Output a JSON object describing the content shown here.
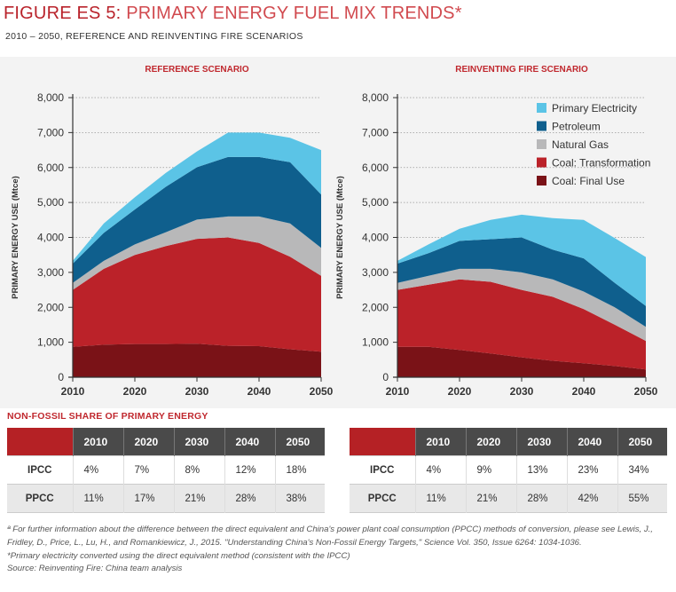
{
  "figure": {
    "title_prefix": "FIGURE ES 5:",
    "title_rest": " PRIMARY ENERGY FUEL MIX TRENDS*",
    "subtitle": "2010 – 2050, REFERENCE AND REINVENTING FIRE SCENARIOS"
  },
  "colors": {
    "primary_electricity": "#5bc4e6",
    "petroleum": "#0f5f8d",
    "natural_gas": "#b8b8b9",
    "coal_transformation": "#bb2229",
    "coal_final_use": "#7a1217"
  },
  "chart_data": [
    {
      "type": "area",
      "stacked": true,
      "title": "REFERENCE SCENARIO",
      "ylabel": "PRIMARY ENERGY USE (Mtce)",
      "ylim": [
        0,
        8000
      ],
      "yticks": [
        "0",
        "1,000",
        "2,000",
        "3,000",
        "4,000",
        "5,000",
        "6,000",
        "7,000",
        "8,000"
      ],
      "xticks": [
        "2010",
        "2020",
        "2030",
        "2040",
        "2050"
      ],
      "x": [
        2010,
        2015,
        2020,
        2025,
        2030,
        2035,
        2040,
        2045,
        2050
      ],
      "series": [
        {
          "name": "Coal: Final Use",
          "values": [
            870,
            930,
            950,
            950,
            960,
            900,
            890,
            800,
            730
          ]
        },
        {
          "name": "Coal: Transformation",
          "values": [
            1630,
            2170,
            2550,
            2800,
            3000,
            3100,
            2950,
            2650,
            2170
          ]
        },
        {
          "name": "Natural Gas",
          "values": [
            200,
            230,
            300,
            400,
            550,
            600,
            760,
            950,
            800
          ]
        },
        {
          "name": "Petroleum",
          "values": [
            550,
            800,
            1000,
            1300,
            1500,
            1700,
            1700,
            1750,
            1530
          ]
        },
        {
          "name": "Primary Electricity",
          "values": [
            80,
            270,
            350,
            400,
            450,
            700,
            700,
            700,
            1270
          ]
        }
      ]
    },
    {
      "type": "area",
      "stacked": true,
      "title": "REINVENTING FIRE SCENARIO",
      "ylabel": "PRIMARY ENERGY USE (Mtce)",
      "ylim": [
        0,
        8000
      ],
      "yticks": [
        "0",
        "1,000",
        "2,000",
        "3,000",
        "4,000",
        "5,000",
        "6,000",
        "7,000",
        "8,000"
      ],
      "xticks": [
        "2010",
        "2020",
        "2030",
        "2040",
        "2050"
      ],
      "x": [
        2010,
        2015,
        2020,
        2025,
        2030,
        2035,
        2040,
        2045,
        2050
      ],
      "series": [
        {
          "name": "Coal: Final Use",
          "values": [
            870,
            870,
            780,
            680,
            570,
            470,
            400,
            320,
            220
          ]
        },
        {
          "name": "Coal: Transformation",
          "values": [
            1630,
            1780,
            2020,
            2050,
            1930,
            1830,
            1550,
            1180,
            820
          ]
        },
        {
          "name": "Natural Gas",
          "values": [
            200,
            250,
            300,
            370,
            500,
            500,
            500,
            500,
            400
          ]
        },
        {
          "name": "Petroleum",
          "values": [
            550,
            650,
            800,
            850,
            1000,
            850,
            950,
            700,
            600
          ]
        },
        {
          "name": "Primary Electricity",
          "values": [
            80,
            250,
            350,
            550,
            650,
            900,
            1100,
            1280,
            1400
          ]
        }
      ]
    }
  ],
  "legend": [
    {
      "label": "Primary Electricity",
      "key": "primary_electricity"
    },
    {
      "label": "Petroleum",
      "key": "petroleum"
    },
    {
      "label": "Natural Gas",
      "key": "natural_gas"
    },
    {
      "label": "Coal: Transformation",
      "key": "coal_transformation"
    },
    {
      "label": "Coal: Final Use",
      "key": "coal_final_use"
    }
  ],
  "share": {
    "title": "NON-FOSSIL SHARE OF PRIMARY ENERGY",
    "tables": [
      {
        "years": [
          "2010",
          "2020",
          "2030",
          "2040",
          "2050"
        ],
        "rows": [
          {
            "label": "IPCC",
            "values": [
              "4%",
              "7%",
              "8%",
              "12%",
              "18%"
            ]
          },
          {
            "label": "PPCC",
            "values": [
              "11%",
              "17%",
              "21%",
              "28%",
              "38%"
            ]
          }
        ]
      },
      {
        "years": [
          "2010",
          "2020",
          "2030",
          "2040",
          "2050"
        ],
        "rows": [
          {
            "label": "IPCC",
            "values": [
              "4%",
              "9%",
              "13%",
              "23%",
              "34%"
            ]
          },
          {
            "label": "PPCC",
            "values": [
              "11%",
              "21%",
              "28%",
              "42%",
              "55%"
            ]
          }
        ]
      }
    ]
  },
  "notes": {
    "footnote": "ª For further information about the difference between the direct equivalent and China's power plant coal consumption (PPCC) methods of conversion, please see Lewis, J., Fridley, D., Price, L., Lu, H., and Romankiewicz, J., 2015. \"Understanding China's Non-Fossil Energy Targets,\" Science Vol. 350, Issue 6264: 1034-1036.",
    "primary_electricity": "*Primary electricity converted using the direct equivalent method (consistent with the IPCC)",
    "source": "Source: Reinventing Fire: China team analysis"
  }
}
